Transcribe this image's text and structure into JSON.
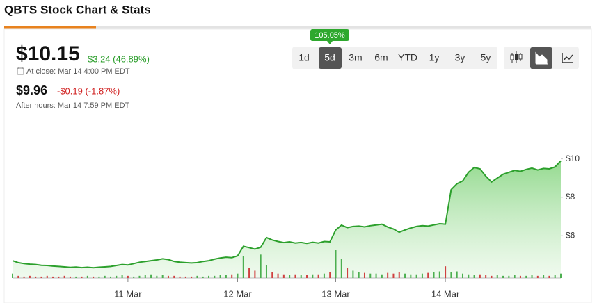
{
  "header": {
    "title": "QBTS Stock Chart & Stats"
  },
  "quote": {
    "price": "$10.15",
    "change": "$3.24 (46.89%)",
    "close_note": "At close: Mar 14 4:00 PM EDT",
    "after_price": "$9.96",
    "after_change": "-$0.19 (-1.87%)",
    "after_note": "After hours: Mar 14 7:59 PM EDT"
  },
  "controls": {
    "ranges": [
      "1d",
      "5d",
      "3m",
      "6m",
      "YTD",
      "1y",
      "3y",
      "5y"
    ],
    "selected_range": "5d",
    "range_return": "105.05%"
  },
  "chart_data": {
    "type": "area",
    "color": "#2ca02c",
    "categories": [
      null,
      null,
      null,
      null,
      null,
      null,
      null,
      null,
      null,
      null,
      null,
      null,
      null,
      null,
      null,
      null,
      null,
      null,
      null,
      null,
      "11 Mar",
      null,
      null,
      null,
      null,
      null,
      null,
      null,
      null,
      null,
      null,
      null,
      null,
      null,
      null,
      null,
      null,
      null,
      null,
      "12 Mar",
      null,
      null,
      null,
      null,
      null,
      null,
      null,
      null,
      null,
      null,
      null,
      null,
      null,
      null,
      null,
      null,
      "13 Mar",
      null,
      null,
      null,
      null,
      null,
      null,
      null,
      null,
      null,
      null,
      null,
      null,
      null,
      null,
      null,
      null,
      null,
      null,
      "14 Mar",
      null,
      null,
      null,
      null,
      null,
      null,
      null,
      null,
      null,
      null,
      null,
      null,
      null,
      null,
      null,
      null,
      null,
      null,
      null,
      null
    ],
    "values": [
      4.7,
      4.6,
      4.55,
      4.52,
      4.5,
      4.46,
      4.45,
      4.42,
      4.4,
      4.38,
      4.35,
      4.37,
      4.34,
      4.36,
      4.33,
      4.36,
      4.38,
      4.4,
      4.45,
      4.5,
      4.48,
      4.55,
      4.62,
      4.66,
      4.7,
      4.74,
      4.8,
      4.76,
      4.66,
      4.62,
      4.6,
      4.58,
      4.6,
      4.66,
      4.7,
      4.78,
      4.84,
      4.88,
      4.86,
      4.95,
      5.45,
      5.38,
      5.3,
      5.4,
      5.9,
      5.78,
      5.7,
      5.64,
      5.68,
      5.62,
      5.65,
      5.6,
      5.66,
      5.62,
      5.7,
      5.68,
      6.3,
      6.55,
      6.42,
      6.48,
      6.5,
      6.46,
      6.52,
      6.56,
      6.6,
      6.45,
      6.35,
      6.18,
      6.3,
      6.4,
      6.48,
      6.52,
      6.5,
      6.56,
      6.62,
      6.6,
      8.4,
      8.7,
      8.85,
      9.3,
      9.55,
      9.48,
      9.1,
      8.8,
      9.0,
      9.2,
      9.3,
      9.4,
      9.35,
      9.45,
      9.52,
      9.42,
      9.5,
      9.48,
      9.58,
      9.9
    ],
    "volume": {
      "values": [
        6,
        3,
        2,
        3,
        2,
        2,
        3,
        2,
        2,
        3,
        2,
        2,
        2,
        3,
        2,
        2,
        3,
        2,
        3,
        4,
        3,
        2,
        3,
        4,
        5,
        3,
        4,
        3,
        3,
        2,
        2,
        2,
        3,
        2,
        3,
        3,
        4,
        4,
        5,
        6,
        30,
        14,
        10,
        32,
        18,
        8,
        6,
        5,
        4,
        5,
        4,
        4,
        5,
        5,
        6,
        8,
        38,
        26,
        14,
        10,
        8,
        7,
        6,
        6,
        5,
        7,
        6,
        8,
        6,
        5,
        5,
        6,
        7,
        8,
        9,
        16,
        8,
        9,
        6,
        5,
        4,
        5,
        4,
        3,
        4,
        3,
        3,
        4,
        3,
        3,
        4,
        3,
        4,
        3,
        4,
        6
      ]
    },
    "ylim": [
      3.8,
      12.3
    ],
    "yticks": [
      {
        "value": 6,
        "label": "$6"
      },
      {
        "value": 8,
        "label": "$8"
      },
      {
        "value": 10,
        "label": "$10"
      }
    ]
  }
}
